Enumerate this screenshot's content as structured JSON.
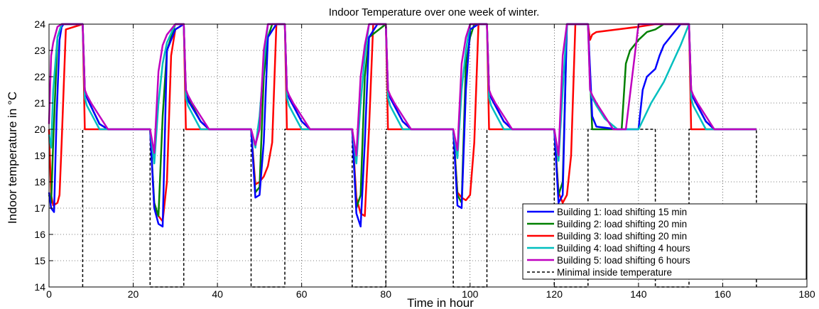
{
  "chart_data": {
    "type": "line",
    "title": "Indoor Temperature over one week of winter.",
    "xlabel": "Time in hour",
    "ylabel": "Indoor temperature in °C",
    "xlim": [
      0,
      180
    ],
    "ylim": [
      14,
      24
    ],
    "x_ticks": [
      0,
      20,
      40,
      60,
      80,
      100,
      120,
      140,
      160,
      180
    ],
    "y_ticks": [
      14,
      15,
      16,
      17,
      18,
      19,
      20,
      21,
      22,
      23,
      24
    ],
    "grid": true,
    "legend_position": "bottom-right",
    "colors": {
      "building1": "#0000ff",
      "building2": "#008000",
      "building3": "#ff0000",
      "building4": "#00bfbf",
      "building5": "#bf00bf",
      "minimal": "#000000"
    },
    "series": [
      {
        "name": "Building 1: load shifting 15 min",
        "color": "#0000ff",
        "style": "solid",
        "x": [
          0,
          0.5,
          1.2,
          1.8,
          2.5,
          3,
          3.5,
          8,
          8.5,
          9,
          12,
          14,
          24,
          25,
          26,
          27,
          28,
          30,
          32,
          32.5,
          33,
          36,
          38,
          48,
          49,
          50,
          51,
          52,
          54,
          56,
          56.5,
          57,
          60,
          62,
          72,
          73,
          74,
          75,
          76,
          78,
          80,
          80.5,
          81,
          84,
          86,
          96,
          97,
          98,
          99,
          100,
          102,
          104,
          104.5,
          105,
          108,
          110,
          120,
          121,
          122,
          123,
          125,
          128,
          129,
          130,
          135,
          140,
          141,
          142,
          144,
          145,
          146,
          150,
          152,
          152.5,
          153,
          156,
          158,
          168
        ],
        "y": [
          17.6,
          17.0,
          16.85,
          20.5,
          23.4,
          23.9,
          24,
          24,
          21.5,
          21.2,
          20.2,
          20,
          20,
          17.0,
          16.4,
          16.3,
          23.0,
          23.8,
          24,
          21.4,
          21.1,
          20.3,
          20,
          20,
          17.4,
          17.5,
          19.5,
          23.5,
          24,
          24,
          21.5,
          21.2,
          20.3,
          20,
          20,
          16.8,
          16.3,
          19.5,
          23.5,
          24,
          24,
          21.5,
          21.2,
          20.3,
          20,
          20,
          17.1,
          17.0,
          21.5,
          23.8,
          24,
          24,
          21.5,
          21.2,
          20.3,
          20,
          20,
          17.2,
          17.5,
          24,
          24,
          24,
          20.5,
          20.1,
          20,
          20,
          21.5,
          22.0,
          22.3,
          22.8,
          23.2,
          24,
          24,
          21.5,
          21.2,
          20.3,
          20,
          20
        ]
      },
      {
        "name": "Building 2: load shifting 20 min",
        "color": "#008000",
        "style": "solid",
        "x": [
          0,
          0.5,
          1,
          2,
          3,
          8,
          8.5,
          9,
          12,
          14,
          24,
          25,
          26,
          27,
          28,
          30,
          32,
          32.5,
          33,
          36,
          38,
          48,
          49,
          50,
          51,
          52,
          53,
          56,
          56.5,
          57,
          60,
          62,
          72,
          73,
          74,
          75,
          76,
          80,
          80.5,
          81,
          84,
          86,
          96,
          97,
          98,
          99,
          100,
          101,
          104,
          104.5,
          105,
          108,
          110,
          120,
          121,
          122,
          123,
          128,
          129,
          132,
          135,
          136,
          137,
          138,
          140,
          142,
          144,
          146,
          150,
          152,
          152.5,
          153,
          156,
          158,
          168
        ],
        "y": [
          17.5,
          17.2,
          19.5,
          23.5,
          24,
          24,
          21.5,
          21.2,
          20.2,
          20,
          20,
          17.2,
          16.7,
          20.5,
          23.0,
          24,
          24,
          21.5,
          21.2,
          20.3,
          20,
          20,
          17.6,
          17.8,
          22.0,
          23.5,
          24,
          24,
          21.5,
          21.2,
          20.3,
          20,
          20,
          17.0,
          17.5,
          22.0,
          23.5,
          24,
          21.5,
          21.2,
          20.3,
          20,
          20,
          17.5,
          17.2,
          22.5,
          23.5,
          24,
          24,
          21.5,
          21.2,
          20.3,
          20,
          20,
          17.5,
          18.0,
          24,
          24,
          20.0,
          20,
          20,
          20,
          22.5,
          23.0,
          23.4,
          23.7,
          23.8,
          24,
          24,
          24,
          21.5,
          21.2,
          20.3,
          20,
          20
        ]
      },
      {
        "name": "Building 3: load shifting 20 min",
        "color": "#ff0000",
        "style": "solid",
        "x": [
          0,
          0.5,
          1,
          2,
          2.5,
          3,
          4,
          8,
          8.5,
          24,
          25,
          26,
          27,
          28,
          29,
          30,
          32,
          32.5,
          48,
          49,
          50,
          51,
          52,
          53,
          54,
          56,
          56.5,
          72,
          73,
          74,
          75,
          76,
          77,
          80,
          80.5,
          96,
          97,
          98,
          99,
          100,
          101,
          102,
          104,
          104.5,
          120,
          121,
          122,
          123,
          124,
          125,
          128,
          128.5,
          129,
          130,
          140,
          144,
          152,
          152.5,
          168
        ],
        "y": [
          20,
          17.5,
          17.1,
          17.2,
          17.5,
          19.5,
          23.8,
          24,
          20,
          20,
          17.0,
          16.7,
          16.5,
          18.0,
          22.8,
          23.8,
          24,
          20,
          20,
          17.9,
          18.0,
          18.2,
          18.6,
          19.5,
          24,
          24,
          20,
          20,
          17.4,
          16.8,
          16.7,
          20.0,
          24,
          24,
          20,
          20,
          17.6,
          17.4,
          17.3,
          17.5,
          19.5,
          24,
          24,
          20,
          20,
          17.6,
          17.2,
          17.5,
          19.0,
          24,
          24,
          23.4,
          23.6,
          23.7,
          23.9,
          24,
          24,
          20,
          20
        ]
      },
      {
        "name": "Building 4: load shifting 4 hours",
        "color": "#00bfbf",
        "style": "solid",
        "x": [
          0,
          0.5,
          1,
          2,
          3,
          8,
          8.5,
          9,
          10,
          12,
          24,
          25,
          26,
          27,
          28,
          30,
          32,
          32.5,
          33,
          34,
          36,
          48,
          49,
          50,
          51,
          52,
          56,
          56.5,
          57,
          58,
          60,
          72,
          73,
          74,
          75,
          76,
          80,
          80.5,
          81,
          82,
          84,
          96,
          97,
          98,
          99,
          100,
          104,
          104.5,
          105,
          106,
          108,
          120,
          121,
          122,
          123,
          128,
          128.5,
          129,
          130,
          132,
          135,
          140,
          143,
          146,
          148,
          150,
          152,
          152.5,
          153,
          154,
          156,
          168
        ],
        "y": [
          19.8,
          19.3,
          21.5,
          23.5,
          24,
          24,
          21.2,
          20.9,
          20.6,
          20,
          20,
          18.7,
          21.0,
          22.5,
          23.3,
          24,
          24,
          21.2,
          20.9,
          20.6,
          20,
          20,
          19.3,
          20.5,
          22.5,
          24,
          24,
          21.2,
          20.9,
          20.6,
          20,
          20,
          18.7,
          21.0,
          22.8,
          24,
          24,
          21.2,
          20.9,
          20.6,
          20,
          20,
          18.9,
          21.5,
          23.0,
          24,
          24,
          21.2,
          20.9,
          20.6,
          20,
          20,
          18.8,
          21.5,
          24,
          24,
          21.5,
          21.2,
          20.9,
          20.4,
          20,
          20,
          21.0,
          21.8,
          22.5,
          23.2,
          24,
          21.2,
          20.9,
          20.6,
          20,
          20
        ]
      },
      {
        "name": "Building 5: load shifting 6 hours",
        "color": "#bf00bf",
        "style": "solid",
        "x": [
          0,
          0.5,
          1,
          2,
          3,
          8,
          8.5,
          9,
          10,
          14,
          24,
          25,
          26,
          27,
          28,
          30,
          32,
          32.5,
          33,
          34,
          38,
          48,
          49,
          50,
          51,
          52,
          56,
          56.5,
          57,
          58,
          62,
          72,
          73,
          74,
          75,
          76,
          80,
          80.5,
          81,
          82,
          86,
          96,
          97,
          98,
          99,
          100,
          104,
          104.5,
          105,
          106,
          110,
          120,
          121,
          122,
          123,
          128,
          128.5,
          129,
          130,
          134,
          137,
          140,
          144,
          152,
          152.5,
          153,
          154,
          158,
          168
        ],
        "y": [
          20.2,
          22.8,
          23.3,
          23.9,
          24,
          24,
          21.5,
          21.3,
          21.0,
          20,
          20,
          19.1,
          22.2,
          23.2,
          23.6,
          24,
          24,
          21.5,
          21.3,
          21.0,
          20,
          20,
          19.4,
          20.0,
          23.0,
          24,
          24,
          21.5,
          21.3,
          21.0,
          20,
          20,
          19.0,
          22.0,
          23.2,
          24,
          24,
          21.5,
          21.3,
          21.0,
          20,
          20,
          19.2,
          22.5,
          23.5,
          24,
          24,
          21.5,
          21.3,
          21.0,
          20,
          20,
          19.0,
          22.8,
          24,
          24,
          21.5,
          21.3,
          21.0,
          20,
          20,
          24,
          24,
          24,
          21.5,
          21.3,
          21.0,
          20,
          20
        ]
      },
      {
        "name": "Minimal inside temperature",
        "color": "#000000",
        "style": "dashed",
        "x": [
          8,
          8,
          24,
          24,
          32,
          32,
          48,
          48,
          56,
          56,
          72,
          72,
          80,
          80,
          96,
          96,
          104,
          104,
          120,
          120,
          128,
          128,
          144,
          144,
          152,
          152,
          168,
          168
        ],
        "y": [
          14,
          20,
          20,
          14,
          14,
          20,
          20,
          14,
          14,
          20,
          20,
          14,
          14,
          20,
          20,
          14,
          14,
          20,
          20,
          14,
          14,
          20,
          20,
          14,
          14,
          20,
          20,
          14
        ]
      }
    ]
  }
}
